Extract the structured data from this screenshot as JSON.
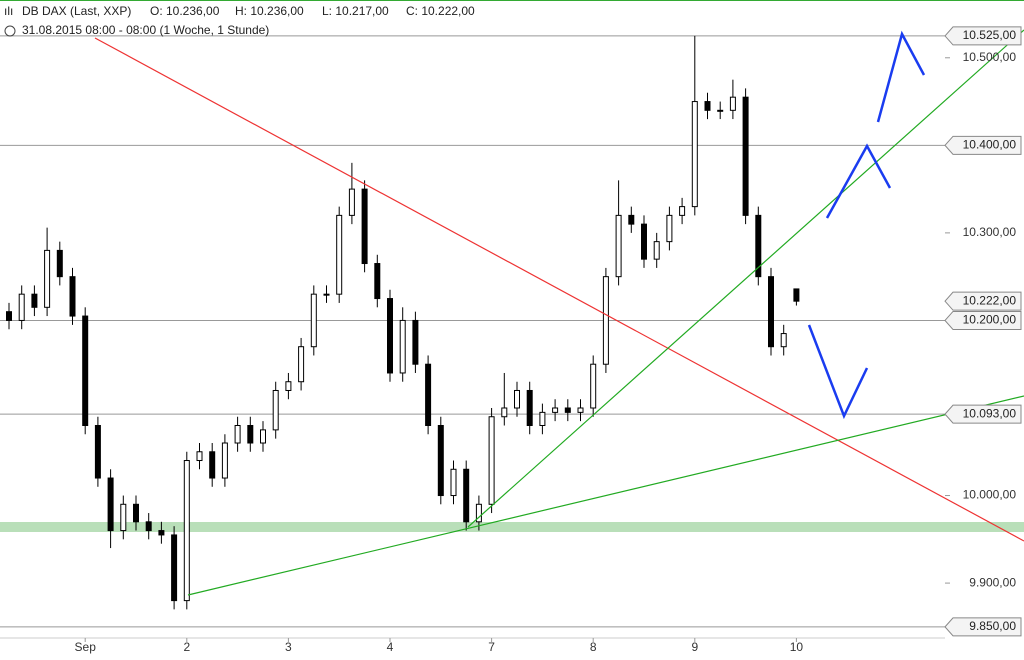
{
  "chart_data": {
    "type": "candlestick",
    "title": "DB DAX (Last, XXP)",
    "ohlc_labels": [
      "O: 10.236,00",
      "H: 10.236,00",
      "L: 10.217,00",
      "C: 10.222,00"
    ],
    "subtitle": "31.08.2015 08:00 - 08:00 (1 Woche, 1 Stunde)",
    "categories": [
      null,
      null,
      null,
      null,
      null,
      null,
      "Sep",
      null,
      null,
      null,
      null,
      null,
      null,
      null,
      "2",
      null,
      null,
      null,
      null,
      null,
      null,
      null,
      "3",
      null,
      null,
      null,
      null,
      null,
      null,
      null,
      "4",
      null,
      null,
      null,
      null,
      null,
      null,
      null,
      "7",
      null,
      null,
      null,
      null,
      null,
      null,
      null,
      "8",
      null,
      null,
      null,
      null,
      null,
      null,
      null,
      "9",
      null,
      null,
      null,
      null,
      null,
      null,
      null,
      "10"
    ],
    "open": [
      10210,
      10200,
      10230,
      10215,
      10280,
      10250,
      10205,
      10080,
      10020,
      9960,
      9990,
      9970,
      9960,
      9955,
      9880,
      10040,
      10050,
      10020,
      10060,
      10080,
      10060,
      10075,
      10120,
      10130,
      10170,
      10230,
      10230,
      10320,
      10350,
      10265,
      10225,
      10140,
      10200,
      10150,
      10080,
      10000,
      10030,
      9970,
      9990,
      10090,
      10100,
      10120,
      10080,
      10095,
      10100,
      10095,
      10100,
      10150,
      10250,
      10320,
      10310,
      10270,
      10290,
      10320,
      10330,
      10450,
      10440,
      10440,
      10455,
      10320,
      10250,
      10170,
      10236
    ],
    "high": [
      10220,
      10240,
      10240,
      10306,
      10290,
      10260,
      10215,
      10090,
      10030,
      10000,
      10000,
      9980,
      9970,
      9965,
      10050,
      10060,
      10060,
      10070,
      10090,
      10090,
      10085,
      10130,
      10140,
      10180,
      10240,
      10240,
      10330,
      10380,
      10360,
      10275,
      10235,
      10215,
      10210,
      10160,
      10090,
      10040,
      10040,
      10000,
      10100,
      10140,
      10130,
      10130,
      10105,
      10110,
      10110,
      10110,
      10160,
      10260,
      10360,
      10330,
      10320,
      10300,
      10330,
      10340,
      10525,
      10460,
      10450,
      10475,
      10465,
      10330,
      10260,
      10195,
      10236
    ],
    "low": [
      10190,
      10190,
      10205,
      10205,
      10240,
      10195,
      10070,
      10010,
      9940,
      9950,
      9960,
      9950,
      9945,
      9870,
      9870,
      10030,
      10010,
      10010,
      10050,
      10050,
      10050,
      10065,
      10110,
      10120,
      10160,
      10220,
      10220,
      10310,
      10255,
      10215,
      10130,
      10130,
      10140,
      10070,
      9990,
      9990,
      9960,
      9960,
      9980,
      10080,
      10090,
      10070,
      10070,
      10085,
      10085,
      10085,
      10090,
      10140,
      10240,
      10300,
      10260,
      10260,
      10280,
      10310,
      10320,
      10430,
      10430,
      10430,
      10310,
      10240,
      10160,
      10160,
      10217
    ],
    "close": [
      10200,
      10230,
      10215,
      10280,
      10250,
      10205,
      10080,
      10020,
      9960,
      9990,
      9970,
      9960,
      9955,
      9880,
      10040,
      10050,
      10020,
      10060,
      10080,
      10060,
      10075,
      10120,
      10130,
      10170,
      10230,
      10230,
      10320,
      10350,
      10265,
      10225,
      10140,
      10200,
      10150,
      10080,
      10000,
      10030,
      9970,
      9990,
      10090,
      10100,
      10120,
      10080,
      10095,
      10100,
      10095,
      10100,
      10150,
      10250,
      10320,
      10310,
      10270,
      10290,
      10320,
      10330,
      10450,
      10440,
      10440,
      10455,
      10320,
      10250,
      10170,
      10185,
      10222
    ],
    "up_color": "#ffffff",
    "down_color": "#000000",
    "ylim": [
      9835,
      10566
    ],
    "yticks": [
      {
        "value": 9900,
        "label": "9.900,00"
      },
      {
        "value": 10000,
        "label": "10.000,00"
      },
      {
        "value": 10300,
        "label": "10.300,00"
      },
      {
        "value": 10500,
        "label": "10.500,00"
      }
    ],
    "levels": [
      {
        "value": 10525,
        "label": "10.525,00"
      },
      {
        "value": 10400,
        "label": "10.400,00"
      },
      {
        "value": 10200,
        "label": "10.200,00"
      },
      {
        "value": 10093,
        "label": "10.093,00"
      },
      {
        "value": 9850,
        "label": "9.850,00"
      }
    ],
    "last_price": {
      "value": 10222,
      "label": "10.222,00"
    }
  }
}
